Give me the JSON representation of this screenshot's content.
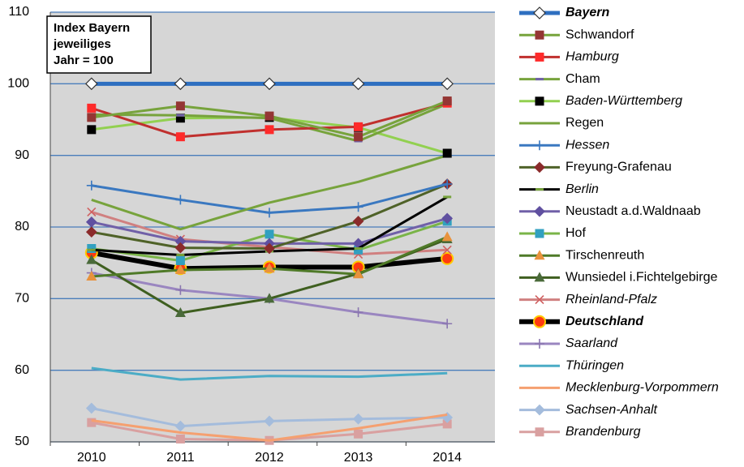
{
  "chart_data": {
    "type": "line",
    "annotation": [
      "Index Bayern",
      "jeweiliges",
      "Jahr = 100"
    ],
    "categories": [
      "2010",
      "2011",
      "2012",
      "2013",
      "2014"
    ],
    "ylim": [
      50,
      110
    ],
    "yticks": [
      50,
      60,
      70,
      80,
      90,
      100,
      110
    ],
    "grid": true,
    "legend": "right",
    "series": [
      {
        "name": "Bayern",
        "color": "#2e6fc0",
        "marker": "diamond",
        "marker_color": "#ffffff",
        "line_width": 5,
        "label_style": "bold-italic",
        "values": [
          100,
          100,
          100,
          100,
          100
        ]
      },
      {
        "name": "Schwandorf",
        "color": "#77a33c",
        "marker": "square",
        "marker_color": "#943634",
        "line_width": 3,
        "label_style": "normal",
        "values": [
          95.3,
          96.9,
          95.5,
          92.6,
          97.6
        ]
      },
      {
        "name": "Hamburg",
        "color": "#c0302e",
        "marker": "square",
        "marker_color": "#ff2a2a",
        "line_width": 3,
        "label_style": "italic",
        "values": [
          96.6,
          92.6,
          93.6,
          94.0,
          97.3
        ]
      },
      {
        "name": "Cham",
        "color": "#77a33c",
        "marker": "dash",
        "marker_color": "#7060a8",
        "line_width": 3,
        "label_style": "normal",
        "values": [
          95.7,
          95.6,
          95.2,
          92.0,
          97.2
        ]
      },
      {
        "name": "Baden-Württemberg",
        "color": "#92d050",
        "marker": "square",
        "marker_color": "#000000",
        "line_width": 3,
        "label_style": "italic",
        "values": [
          93.6,
          95.2,
          95.3,
          93.9,
          90.3
        ]
      },
      {
        "name": "Regen",
        "color": "#77a33c",
        "marker": "none",
        "marker_color": "#77a33c",
        "line_width": 3,
        "label_style": "normal",
        "values": [
          83.8,
          79.7,
          83.4,
          86.3,
          90.0
        ]
      },
      {
        "name": "Hessen",
        "color": "#3a78c0",
        "marker": "plus",
        "marker_color": "#3a78c0",
        "line_width": 3,
        "label_style": "italic",
        "values": [
          85.8,
          83.8,
          82.0,
          82.8,
          86.0
        ]
      },
      {
        "name": "Freyung-Grafenau",
        "color": "#4f6228",
        "marker": "diamond",
        "marker_color": "#8b2b2b",
        "line_width": 3,
        "label_style": "normal",
        "values": [
          79.3,
          77.1,
          77.0,
          80.8,
          86.0
        ]
      },
      {
        "name": "Berlin",
        "color": "#000000",
        "marker": "dash",
        "marker_color": "#77a33c",
        "line_width": 3,
        "label_style": "italic",
        "values": [
          76.8,
          76.1,
          76.6,
          77.0,
          84.2
        ]
      },
      {
        "name": "Neustadt a.d.Waldnaab",
        "color": "#7060a8",
        "marker": "diamond",
        "marker_color": "#6050a0",
        "line_width": 3,
        "label_style": "normal",
        "values": [
          80.7,
          78.0,
          77.7,
          77.7,
          81.2
        ]
      },
      {
        "name": "Hof",
        "color": "#7ab448",
        "marker": "square",
        "marker_color": "#31a0c0",
        "line_width": 3,
        "label_style": "normal",
        "values": [
          77.0,
          75.3,
          79.0,
          76.8,
          80.8
        ]
      },
      {
        "name": "Tirschenreuth",
        "color": "#4f7a28",
        "marker": "triangle",
        "marker_color": "#e8923c",
        "line_width": 3,
        "label_style": "normal",
        "values": [
          73.1,
          74.0,
          74.2,
          73.4,
          78.6
        ]
      },
      {
        "name": "Wunsiedel i.Fichtelgebirge",
        "color": "#3f5f20",
        "marker": "triangle",
        "marker_color": "#4a6a3a",
        "line_width": 3,
        "label_style": "normal",
        "values": [
          75.4,
          68.0,
          70.0,
          73.5,
          78.3
        ]
      },
      {
        "name": "Rheinland-Pfalz",
        "color": "#d08080",
        "marker": "x",
        "marker_color": "#d06060",
        "line_width": 3,
        "label_style": "italic",
        "values": [
          82.1,
          78.3,
          77.2,
          76.2,
          76.8
        ]
      },
      {
        "name": "Deutschland",
        "color": "#000000",
        "marker": "circle",
        "marker_color": "#ff3a10",
        "line_width": 6,
        "label_style": "bold-italic",
        "values": [
          76.4,
          74.2,
          74.4,
          74.4,
          75.6
        ]
      },
      {
        "name": "Saarland",
        "color": "#9a86c0",
        "marker": "plus",
        "marker_color": "#8a76b0",
        "line_width": 3,
        "label_style": "italic",
        "values": [
          73.6,
          71.2,
          70.0,
          68.1,
          66.5
        ]
      },
      {
        "name": "Thüringen",
        "color": "#4bacc6",
        "marker": "none",
        "marker_color": "#4bacc6",
        "line_width": 3,
        "label_style": "italic",
        "values": [
          60.3,
          58.7,
          59.2,
          59.1,
          59.6
        ]
      },
      {
        "name": "Mecklenburg-Vorpommern",
        "color": "#f5a070",
        "marker": "none",
        "marker_color": "#f5a070",
        "line_width": 3,
        "label_style": "italic",
        "values": [
          53.0,
          51.3,
          50.2,
          51.9,
          53.8
        ]
      },
      {
        "name": "Sachsen-Anhalt",
        "color": "#a4bcdc",
        "marker": "diamond",
        "marker_color": "#a4bcdc",
        "line_width": 3,
        "label_style": "italic",
        "values": [
          54.7,
          52.2,
          52.9,
          53.2,
          53.4
        ]
      },
      {
        "name": "Brandenburg",
        "color": "#d9a0a0",
        "marker": "square",
        "marker_color": "#d9a0a0",
        "line_width": 3,
        "label_style": "italic",
        "values": [
          52.7,
          50.4,
          50.2,
          51.1,
          52.5
        ]
      }
    ]
  }
}
